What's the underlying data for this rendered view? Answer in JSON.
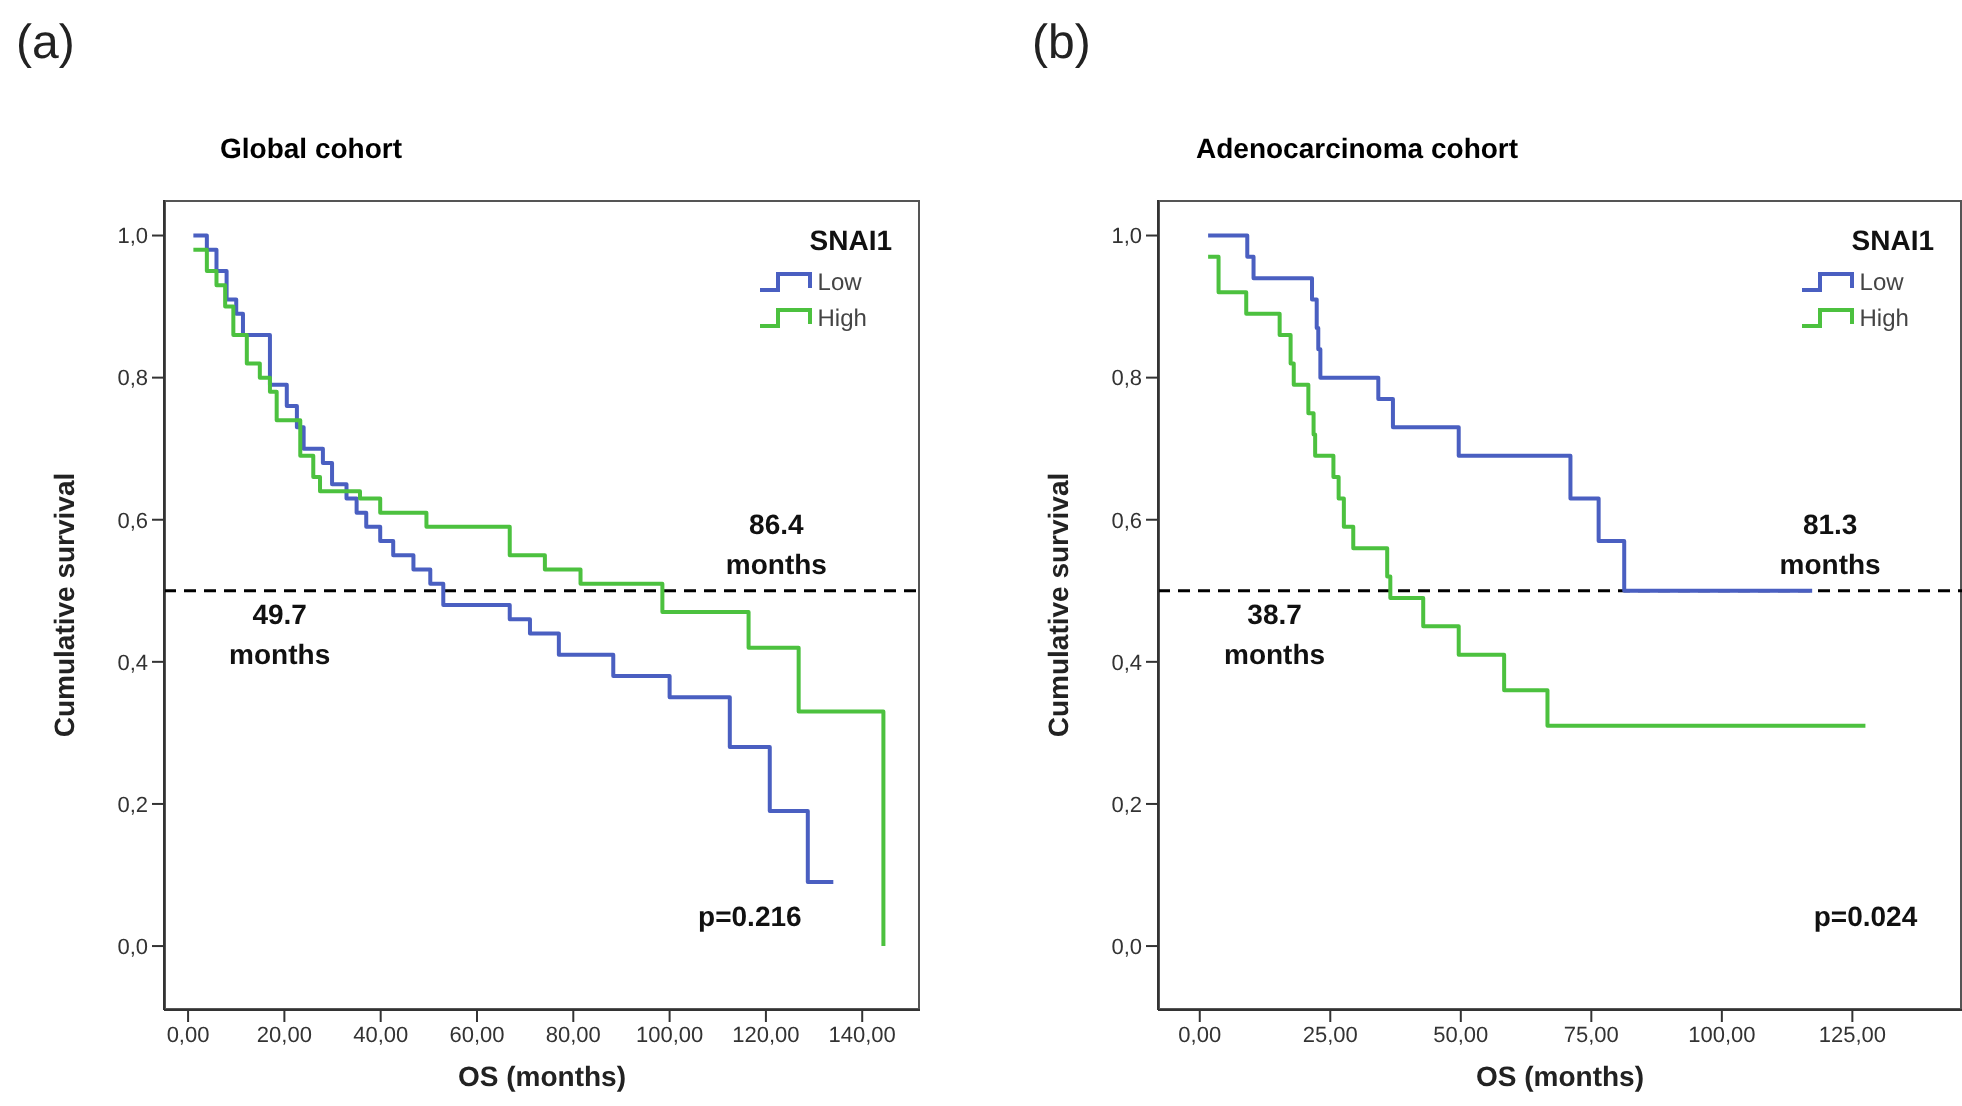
{
  "chart_data": [
    {
      "type": "step",
      "title": "Global cohort",
      "xlabel": "OS (months)",
      "ylabel": "Cumulative survival",
      "legend_title": "SNAI1",
      "legend": "top right",
      "marker": "none",
      "annotations": [
        "(a)",
        "49.7 months",
        "86.4 months",
        "p=0.216"
      ],
      "series": [
        {
          "name": "Low",
          "color": "#4a5fc1",
          "x": [
            1.1,
            3.9,
            5.9,
            8,
            10,
            11.4,
            17,
            20.5,
            22.6,
            24,
            28,
            29.9,
            32.9,
            35,
            37,
            39.9,
            42.6,
            46.8,
            50.3,
            53,
            66.8,
            71,
            77,
            88.3,
            100,
            112.5,
            120.8,
            128.7,
            134
          ],
          "values": [
            1,
            0.98,
            0.95,
            0.91,
            0.89,
            0.86,
            0.79,
            0.76,
            0.73,
            0.7,
            0.68,
            0.65,
            0.63,
            0.61,
            0.59,
            0.57,
            0.55,
            0.53,
            0.51,
            0.48,
            0.46,
            0.44,
            0.41,
            0.38,
            0.35,
            0.28,
            0.19,
            0.09,
            0.09
          ]
        },
        {
          "name": "High",
          "color": "#4cc13f",
          "x": [
            1.1,
            3.9,
            5.9,
            7.7,
            9.4,
            12.2,
            14.9,
            17,
            18.4,
            23.3,
            26,
            27.4,
            35.7,
            39.9,
            49.5,
            66.8,
            74.1,
            81.5,
            98.5,
            116.4,
            126.8,
            144.4
          ],
          "values": [
            0.98,
            0.95,
            0.93,
            0.9,
            0.86,
            0.82,
            0.8,
            0.78,
            0.74,
            0.69,
            0.66,
            0.64,
            0.63,
            0.61,
            0.59,
            0.55,
            0.53,
            0.51,
            0.47,
            0.42,
            0.33,
            0
          ]
        }
      ],
      "xlim": [
        -5,
        152
      ],
      "xticks": [
        {
          "value": 0,
          "label": "0,00"
        },
        {
          "value": 20,
          "label": "20,00"
        },
        {
          "value": 40,
          "label": "40,00"
        },
        {
          "value": 60,
          "label": "60,00"
        },
        {
          "value": 80,
          "label": "80,00"
        },
        {
          "value": 100,
          "label": "100,00"
        },
        {
          "value": 120,
          "label": "120,00"
        },
        {
          "value": 140,
          "label": "140,00"
        }
      ],
      "ylim": [
        -0.09,
        1.05
      ],
      "yticks": [
        {
          "value": 0,
          "label": "0,0"
        },
        {
          "value": 0.2,
          "label": "0,2"
        },
        {
          "value": 0.4,
          "label": "0,4"
        },
        {
          "value": 0.6,
          "label": "0,6"
        },
        {
          "value": 0.8,
          "label": "0,8"
        },
        {
          "value": 1,
          "label": "1,0"
        }
      ],
      "ref_lines": [
        {
          "axis": "y",
          "value": 0.5,
          "color": "#000000",
          "line_style": "dashed"
        }
      ]
    },
    {
      "type": "step",
      "title": "Adenocarcinoma cohort",
      "xlabel": "OS (months)",
      "ylabel": "Cumulative survival",
      "legend_title": "SNAI1",
      "legend": "top right",
      "marker": "none",
      "annotations": [
        "(b)",
        "38.7 months",
        "81.3 months",
        "p=0.024"
      ],
      "series": [
        {
          "name": "Low",
          "color": "#4a5fc1",
          "x": [
            1.6,
            9.1,
            10.3,
            21.5,
            22.4,
            22.7,
            23.1,
            34.2,
            37,
            49.6,
            71,
            76.4,
            81.3,
            117.3
          ],
          "values": [
            1,
            0.97,
            0.94,
            0.91,
            0.87,
            0.84,
            0.8,
            0.77,
            0.73,
            0.69,
            0.63,
            0.57,
            0.5,
            0.5
          ]
        },
        {
          "name": "High",
          "color": "#4cc13f",
          "x": [
            1.6,
            3.6,
            8.9,
            15.3,
            17.4,
            18,
            20.8,
            21.8,
            22.1,
            25.6,
            26.6,
            27.6,
            29.4,
            35.9,
            36.5,
            42.8,
            49.6,
            58.3,
            66.6,
            127.5
          ],
          "values": [
            0.97,
            0.92,
            0.89,
            0.86,
            0.82,
            0.79,
            0.75,
            0.72,
            0.69,
            0.66,
            0.63,
            0.59,
            0.56,
            0.52,
            0.49,
            0.45,
            0.41,
            0.36,
            0.31,
            0.31
          ]
        }
      ],
      "xlim": [
        -8,
        146
      ],
      "xticks": [
        {
          "value": 0,
          "label": "0,00"
        },
        {
          "value": 25,
          "label": "25,00"
        },
        {
          "value": 50,
          "label": "50,00"
        },
        {
          "value": 75,
          "label": "75,00"
        },
        {
          "value": 100,
          "label": "100,00"
        },
        {
          "value": 125,
          "label": "125,00"
        }
      ],
      "ylim": [
        -0.09,
        1.05
      ],
      "yticks": [
        {
          "value": 0,
          "label": "0,0"
        },
        {
          "value": 0.2,
          "label": "0,2"
        },
        {
          "value": 0.4,
          "label": "0,4"
        },
        {
          "value": 0.6,
          "label": "0,6"
        },
        {
          "value": 0.8,
          "label": "0,8"
        },
        {
          "value": 1,
          "label": "1,0"
        }
      ],
      "ref_lines": [
        {
          "axis": "y",
          "value": 0.5,
          "color": "#000000",
          "line_style": "dashed"
        }
      ]
    }
  ]
}
